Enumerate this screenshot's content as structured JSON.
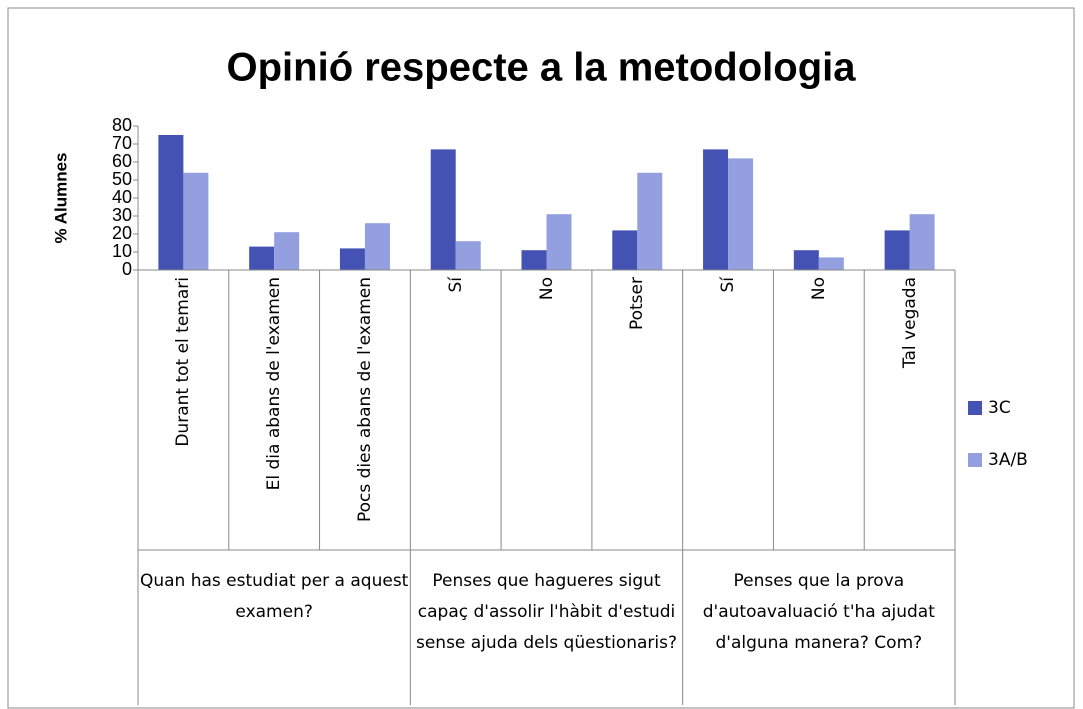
{
  "chart_data": {
    "type": "bar",
    "title": "Opinió respecte a la metodologia",
    "y_label": "% Alumnes",
    "categories": [
      "Durant tot el temari",
      "El dia abans de l'examen",
      "Pocs dies abans de l'examen",
      "Sí",
      "No",
      "Potser",
      "Sí",
      "No",
      "Tal vegada"
    ],
    "group_labels": [
      "Quan has estudiat per a aquest examen?",
      "Penses que hagueres sigut capaç d'assolir l'hàbit d'estudi sense ajuda dels qüestionaris?",
      "Penses que la prova d'autoavaluació t'ha ajudat d'alguna manera? Com?"
    ],
    "series": [
      {
        "name": "3C",
        "color": "#4452b3",
        "values": [
          75,
          13,
          12,
          67,
          11,
          22,
          67,
          11,
          22
        ]
      },
      {
        "name": "3A/B",
        "color": "#949fe0",
        "values": [
          54,
          21,
          26,
          16,
          31,
          54,
          62,
          7,
          31
        ]
      }
    ],
    "ylim": [
      0,
      80
    ],
    "yticks": [
      0,
      10,
      20,
      30,
      40,
      50,
      60,
      70,
      80
    ],
    "legend": "right"
  }
}
